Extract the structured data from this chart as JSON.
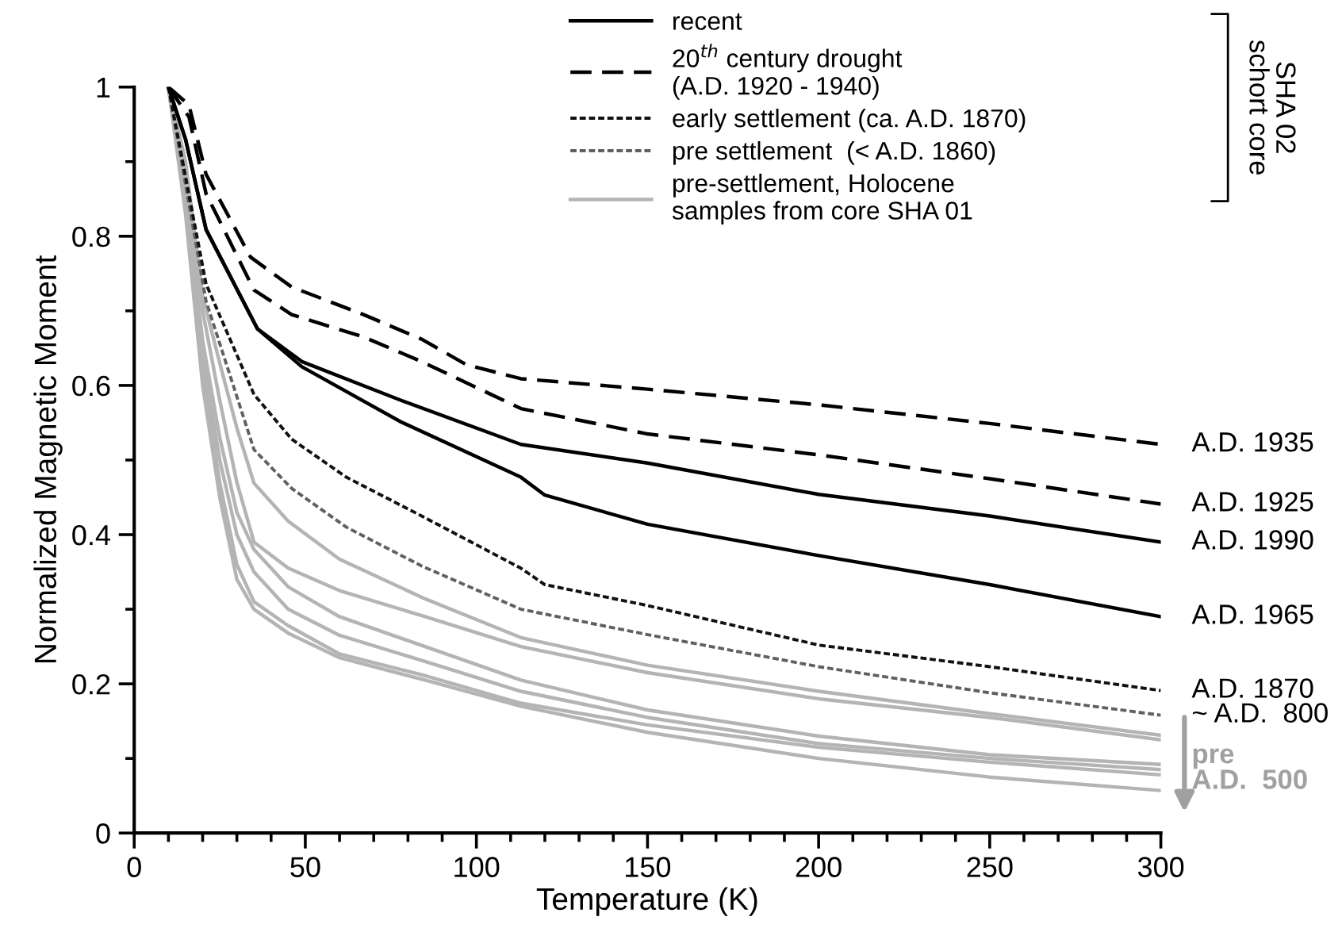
{
  "chart_data": {
    "type": "line",
    "xlabel": "Temperature (K)",
    "ylabel": "Normalized Magnetic Moment",
    "xlim": [
      0,
      300
    ],
    "xticks": [
      0,
      50,
      100,
      150,
      200,
      250,
      300
    ],
    "ylim": [
      0,
      1
    ],
    "yticks": [
      0,
      0.2,
      0.4,
      0.6,
      0.8,
      1
    ],
    "grid": false,
    "legend": "top right",
    "marker": "none",
    "series": [
      {
        "name": "recent",
        "color": "#000000",
        "line_style": "solid",
        "x": [
          10,
          15,
          21,
          36,
          49,
          78,
          113,
          150,
          200,
          250,
          300
        ],
        "values": [
          1,
          0.93,
          0.809,
          0.676,
          0.632,
          0.58,
          0.521,
          0.496,
          0.454,
          0.425,
          0.39
        ]
      },
      {
        "color": "#000000",
        "line_style": "solid",
        "x": [
          10,
          15,
          21,
          36,
          49,
          78,
          113,
          120,
          150,
          200,
          250,
          300
        ],
        "values": [
          1,
          0.93,
          0.809,
          0.676,
          0.625,
          0.551,
          0.477,
          0.453,
          0.414,
          0.372,
          0.333,
          0.29
        ]
      },
      {
        "name": "20$^{th}$ century drought\n(A.D. 1920 - 1940)",
        "color": "#000000",
        "line_style": "dashed",
        "x": [
          10,
          16,
          21,
          34,
          46,
          67,
          84,
          97,
          113,
          150,
          200,
          250,
          300
        ],
        "values": [
          1,
          0.976,
          0.883,
          0.772,
          0.732,
          0.695,
          0.662,
          0.628,
          0.609,
          0.595,
          0.574,
          0.549,
          0.521
        ]
      },
      {
        "color": "#000000",
        "line_style": "dashed",
        "x": [
          10,
          16,
          21,
          35,
          46,
          67,
          84,
          113,
          150,
          200,
          250,
          300
        ],
        "values": [
          1,
          0.96,
          0.857,
          0.728,
          0.695,
          0.665,
          0.632,
          0.569,
          0.535,
          0.507,
          0.475,
          0.441
        ]
      },
      {
        "name": "early settlement (ca. A.D. 1870)",
        "color": "#111111",
        "line_style": "dotted",
        "x": [
          10,
          21,
          35,
          46,
          62,
          84,
          113,
          120,
          150,
          200,
          250,
          300
        ],
        "values": [
          1,
          0.736,
          0.588,
          0.528,
          0.477,
          0.425,
          0.355,
          0.333,
          0.305,
          0.252,
          0.223,
          0.191
        ]
      },
      {
        "name": "pre settlement  (< A.D. 1860)",
        "color": "#606060",
        "line_style": "dotted",
        "x": [
          10,
          21,
          35,
          46,
          62,
          84,
          113,
          150,
          200,
          250,
          300
        ],
        "values": [
          1,
          0.713,
          0.514,
          0.462,
          0.41,
          0.358,
          0.3,
          0.266,
          0.223,
          0.188,
          0.158
        ]
      },
      {
        "name": "pre-settlement, Holocene\nsamples from core SHA 01",
        "color": "#b4b4b4",
        "line_style": "solid",
        "x": [
          10,
          15,
          20,
          25,
          30,
          35,
          45,
          60,
          85,
          113,
          150,
          200,
          250,
          300
        ],
        "values": [
          1,
          0.9,
          0.72,
          0.63,
          0.543,
          0.469,
          0.418,
          0.367,
          0.314,
          0.262,
          0.225,
          0.19,
          0.16,
          0.131
        ]
      },
      {
        "color": "#b4b4b4",
        "line_style": "solid",
        "x": [
          10,
          15,
          20,
          25,
          30,
          35,
          45,
          60,
          85,
          113,
          150,
          200,
          250,
          300
        ],
        "values": [
          1,
          0.88,
          0.7,
          0.58,
          0.47,
          0.39,
          0.355,
          0.325,
          0.29,
          0.25,
          0.215,
          0.18,
          0.155,
          0.125
        ]
      },
      {
        "color": "#b4b4b4",
        "line_style": "solid",
        "x": [
          10,
          15,
          20,
          25,
          30,
          35,
          45,
          60,
          85,
          113,
          150,
          200,
          250,
          300
        ],
        "values": [
          1,
          0.86,
          0.66,
          0.53,
          0.43,
          0.38,
          0.33,
          0.29,
          0.25,
          0.205,
          0.165,
          0.13,
          0.105,
          0.092
        ]
      },
      {
        "color": "#b4b4b4",
        "line_style": "solid",
        "x": [
          10,
          15,
          20,
          25,
          30,
          35,
          45,
          60,
          85,
          113,
          150,
          200,
          250,
          300
        ],
        "values": [
          1,
          0.85,
          0.64,
          0.5,
          0.4,
          0.35,
          0.3,
          0.265,
          0.23,
          0.19,
          0.155,
          0.12,
          0.1,
          0.085
        ]
      },
      {
        "color": "#b4b4b4",
        "line_style": "solid",
        "x": [
          10,
          15,
          20,
          25,
          30,
          35,
          45,
          60,
          85,
          113,
          150,
          200,
          250,
          300
        ],
        "values": [
          1,
          0.84,
          0.62,
          0.47,
          0.36,
          0.31,
          0.278,
          0.24,
          0.211,
          0.174,
          0.145,
          0.115,
          0.095,
          0.078
        ]
      },
      {
        "color": "#b4b4b4",
        "line_style": "solid",
        "x": [
          10,
          15,
          20,
          25,
          30,
          35,
          45,
          60,
          85,
          113,
          150,
          200,
          250,
          300
        ],
        "values": [
          1,
          0.83,
          0.6,
          0.45,
          0.34,
          0.3,
          0.268,
          0.235,
          0.205,
          0.17,
          0.135,
          0.1,
          0.075,
          0.057
        ]
      }
    ],
    "annotations": [
      "A.D. 1935",
      "A.D. 1925",
      "A.D. 1990",
      "A.D. 1965",
      "A.D. 1870",
      "~ A.D.  800",
      "pre\nA.D.  500",
      "SHA 02\nschort core"
    ]
  }
}
